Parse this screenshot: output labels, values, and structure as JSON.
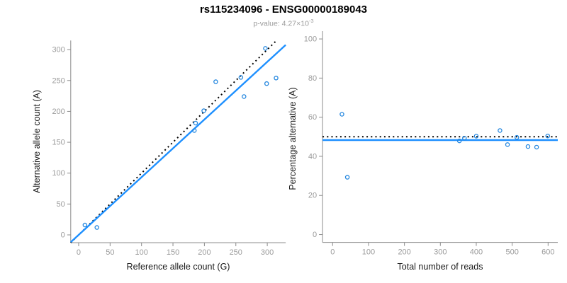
{
  "header": {
    "title": "rs115234096 - ENSG00000189043",
    "pvalue_label": "p-value:",
    "pvalue_mantissa": "4.27",
    "pvalue_times": "×10",
    "pvalue_exp": "-3"
  },
  "palette": {
    "line_blue": "#1E90FF",
    "point_blue": "#2487DF",
    "dotted_black": "#000000",
    "axis_line": "#8C8C8C",
    "tick_label": "#9B9B9B",
    "axis_title": "#1A1A1A",
    "subtitle_gray": "#9B9B9B"
  },
  "chart_data": [
    {
      "id": "allele-counts",
      "type": "scatter",
      "xlabel": "Reference allele count (G)",
      "ylabel": "Alternative allele count (A)",
      "xticks": [
        0,
        50,
        100,
        150,
        200,
        250,
        300
      ],
      "yticks": [
        0,
        50,
        100,
        150,
        200,
        250,
        300
      ],
      "xlim": [
        -12.6,
        329.3
      ],
      "ylim": [
        -12.6,
        314.7
      ],
      "grid": false,
      "legend": "none",
      "points": [
        [
          10,
          16
        ],
        [
          29,
          12
        ],
        [
          184,
          169
        ],
        [
          186,
          181
        ],
        [
          199,
          201
        ],
        [
          218,
          248
        ],
        [
          263,
          224
        ],
        [
          258,
          255
        ],
        [
          299,
          245
        ],
        [
          297,
          302
        ],
        [
          314,
          254
        ]
      ],
      "lines": [
        {
          "name": "identity-line",
          "slope": 1,
          "intercept": 0,
          "style": "dotted",
          "color_key": "dotted_black"
        },
        {
          "name": "fit-line",
          "slope": 0.934,
          "intercept": 0,
          "style": "solid",
          "color_key": "line_blue"
        }
      ]
    },
    {
      "id": "percentage-alternative",
      "type": "scatter",
      "xlabel": "Total number of reads",
      "ylabel": "Percentage alternative (A)",
      "xticks": [
        0,
        100,
        200,
        300,
        400,
        500,
        600
      ],
      "yticks": [
        0,
        20,
        40,
        60,
        80,
        100
      ],
      "xlim": [
        -28,
        627
      ],
      "ylim": [
        -4,
        104
      ],
      "grid": false,
      "legend": "none",
      "points": [
        [
          26,
          61.5
        ],
        [
          41,
          29.3
        ],
        [
          353,
          47.9
        ],
        [
          367,
          49.3
        ],
        [
          400,
          50.3
        ],
        [
          466,
          53.2
        ],
        [
          487,
          46.0
        ],
        [
          513,
          49.7
        ],
        [
          544,
          45.0
        ],
        [
          599,
          50.4
        ],
        [
          568,
          44.7
        ]
      ],
      "lines": [
        {
          "name": "expected-50-line",
          "slope": 0,
          "intercept": 50,
          "style": "dotted",
          "color_key": "dotted_black"
        },
        {
          "name": "fit-line",
          "slope": 0,
          "intercept": 48.3,
          "style": "solid",
          "color_key": "line_blue"
        }
      ]
    }
  ]
}
